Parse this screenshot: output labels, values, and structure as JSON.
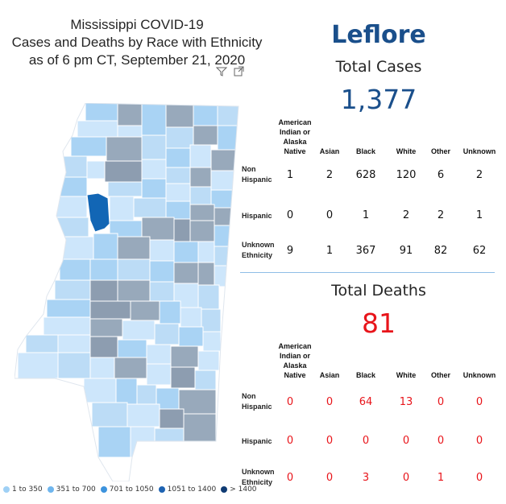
{
  "title": {
    "line1": "Mississippi COVID-19",
    "line2": "Cases and Deaths by Race with Ethnicity",
    "line3": "as of 6 pm CT, September 21, 2020"
  },
  "icons": {
    "filter": "filter-icon",
    "expand": "focus-mode-icon"
  },
  "county": "Leflore",
  "cases": {
    "heading": "Total Cases",
    "total": "1,377",
    "columns": [
      "American Indian or Alaska Native",
      "Asian",
      "Black",
      "White",
      "Other",
      "Unknown"
    ],
    "rows": [
      {
        "label": "Non Hispanic",
        "values": [
          "1",
          "2",
          "628",
          "120",
          "6",
          "2"
        ]
      },
      {
        "label": "Hispanic",
        "values": [
          "0",
          "0",
          "1",
          "2",
          "2",
          "1"
        ]
      },
      {
        "label": "Unknown Ethnicity",
        "values": [
          "9",
          "1",
          "367",
          "91",
          "82",
          "62"
        ]
      }
    ]
  },
  "deaths": {
    "heading": "Total Deaths",
    "total": "81",
    "columns": [
      "American Indian or Alaska Native",
      "Asian",
      "Black",
      "White",
      "Other",
      "Unknown"
    ],
    "rows": [
      {
        "label": "Non Hispanic",
        "values": [
          "0",
          "0",
          "64",
          "13",
          "0",
          "0"
        ]
      },
      {
        "label": "Hispanic",
        "values": [
          "0",
          "0",
          "0",
          "0",
          "0",
          "0"
        ]
      },
      {
        "label": "Unknown Ethnicity",
        "values": [
          "0",
          "0",
          "3",
          "0",
          "1",
          "0"
        ]
      }
    ]
  },
  "legend": [
    {
      "label": "1 to 350",
      "color": "#9fd0f5"
    },
    {
      "label": "351 to 700",
      "color": "#6fb6ee"
    },
    {
      "label": "701 to 1050",
      "color": "#3d93dd"
    },
    {
      "label": "1051 to 1400",
      "color": "#1e63b2"
    },
    {
      "label": "> 1400",
      "color": "#0f3b73"
    }
  ],
  "colors": {
    "accent": "#1a4f8b",
    "deaths": "#e8141a",
    "highlight_county": "#1266b5",
    "map_light": "#cde6fb",
    "map_mid": "#a9d3f4",
    "map_gray": "#98a9bb"
  }
}
